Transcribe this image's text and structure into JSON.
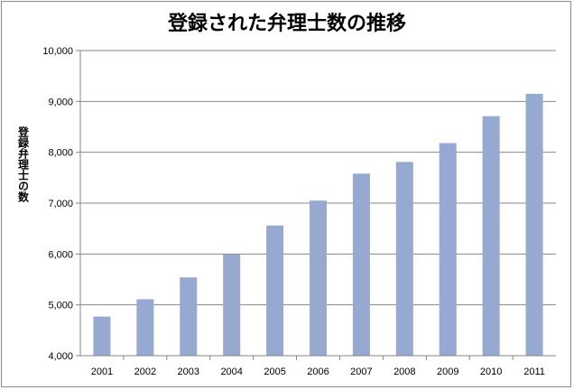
{
  "chart_data": {
    "type": "bar",
    "title": "登録された弁理士数の推移",
    "xlabel": "",
    "ylabel": "登録弁理士の数",
    "categories": [
      "2001",
      "2002",
      "2003",
      "2004",
      "2005",
      "2006",
      "2007",
      "2008",
      "2009",
      "2010",
      "2011"
    ],
    "values": [
      4770,
      5110,
      5540,
      5990,
      6560,
      7050,
      7580,
      7810,
      8180,
      8710,
      9150
    ],
    "ylim": [
      4000,
      10000
    ],
    "yticks": [
      "4,000",
      "5,000",
      "6,000",
      "7,000",
      "8,000",
      "9,000",
      "10,000"
    ],
    "ytick_values": [
      4000,
      5000,
      6000,
      7000,
      8000,
      9000,
      10000
    ],
    "grid": true,
    "legend": "none",
    "bar_color": "#95a9d1"
  }
}
